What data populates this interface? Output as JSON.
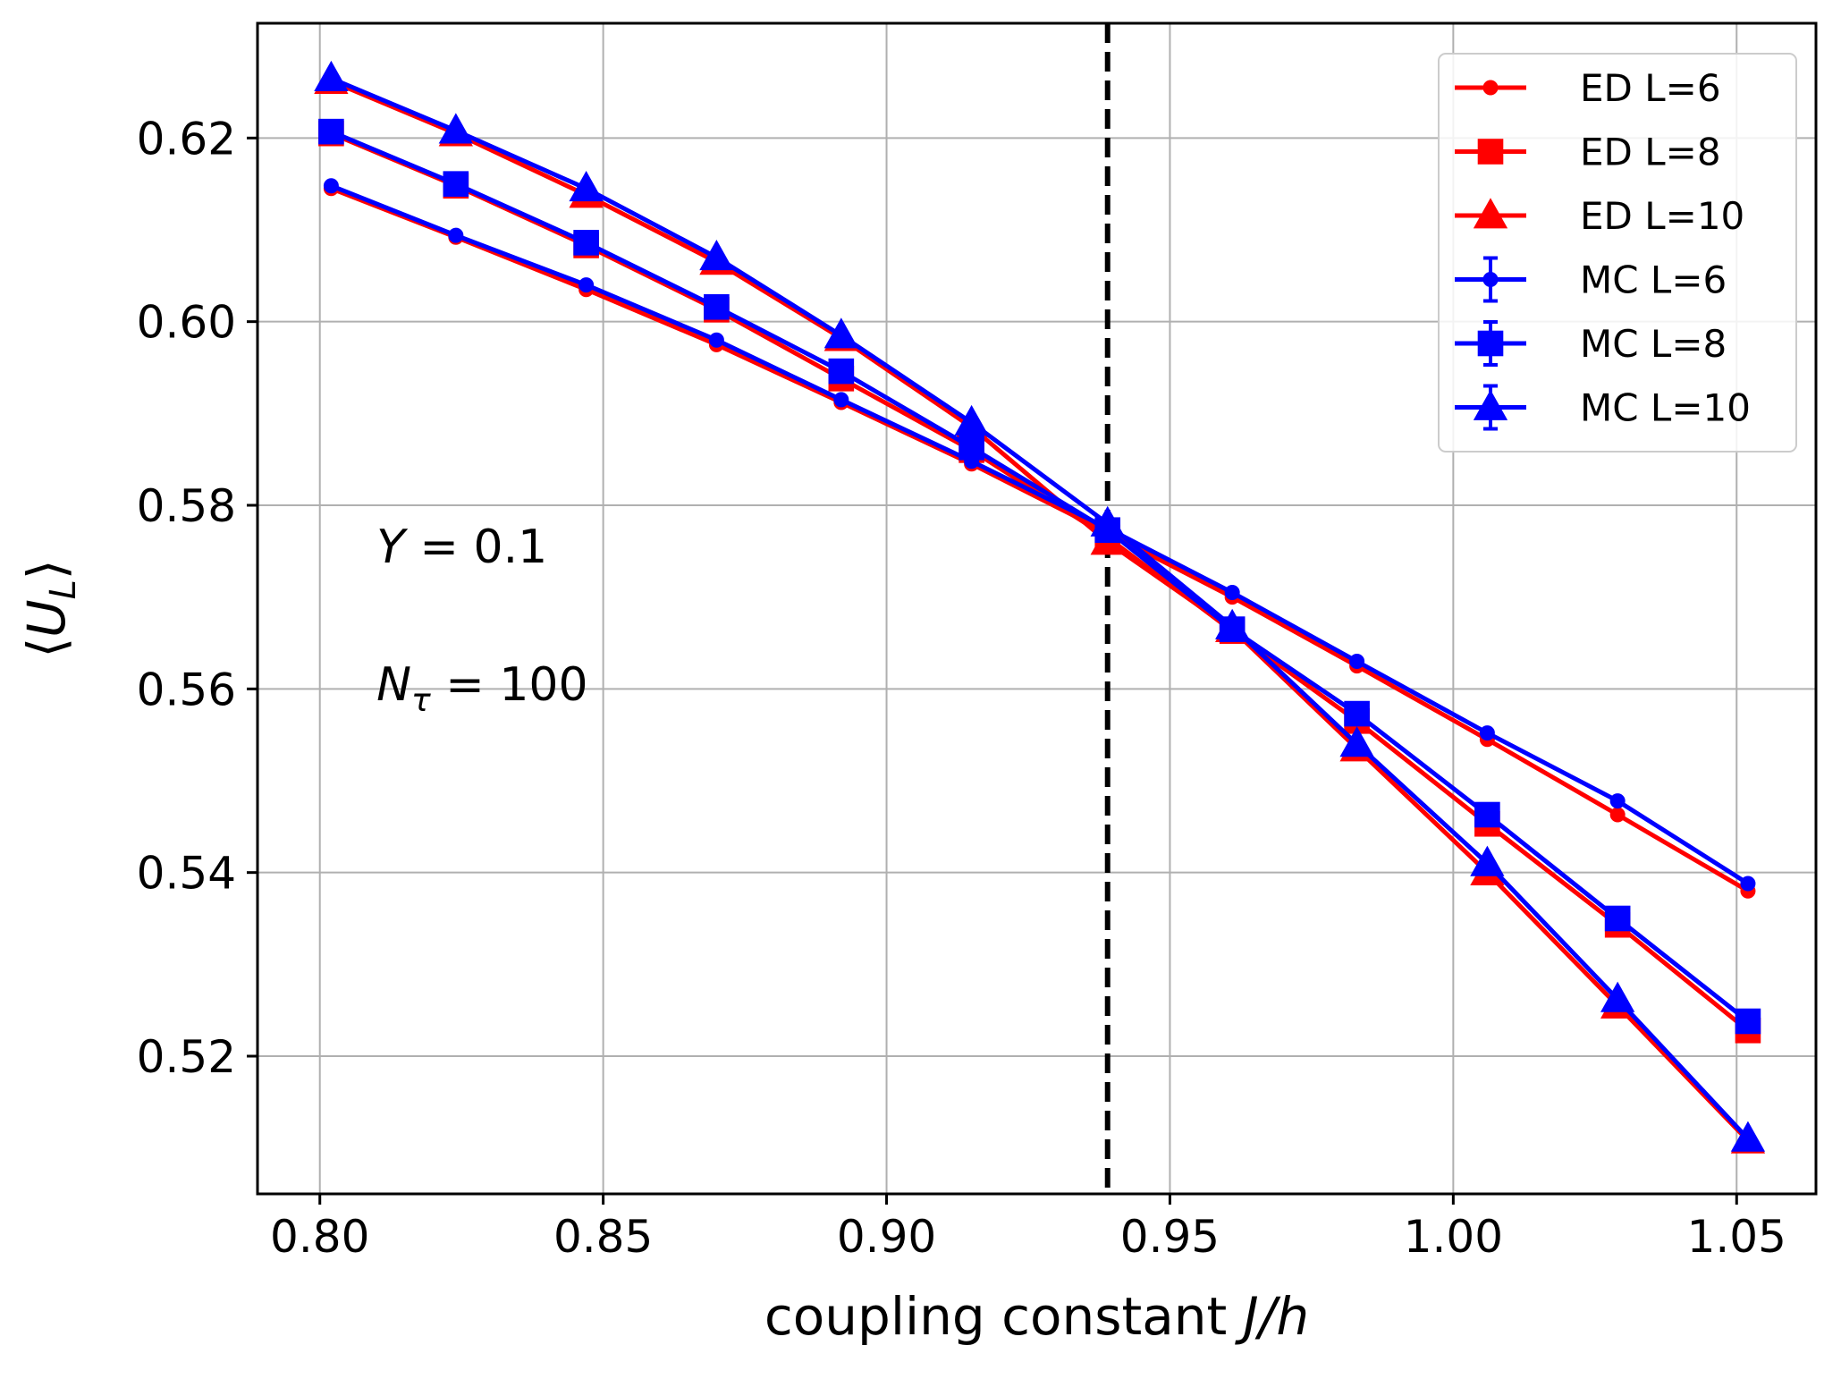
{
  "chart_data": {
    "type": "line",
    "xlabel": "coupling constant  J/h",
    "ylabel": "⟨U_L⟩",
    "xlim": [
      0.789,
      1.064
    ],
    "ylim": [
      0.505,
      0.6325
    ],
    "xticks": [
      0.8,
      0.85,
      0.9,
      0.95,
      1.0,
      1.05
    ],
    "xtick_labels": [
      "0.80",
      "0.85",
      "0.90",
      "0.95",
      "1.00",
      "1.05"
    ],
    "yticks": [
      0.52,
      0.54,
      0.56,
      0.58,
      0.6,
      0.62
    ],
    "ytick_labels": [
      "0.52",
      "0.54",
      "0.56",
      "0.58",
      "0.60",
      "0.62"
    ],
    "grid": true,
    "legend_position": "top-right",
    "vline": {
      "x": 0.939,
      "style": "dashed",
      "color": "#000000"
    },
    "annotations": [
      {
        "text": "Y = 0.1",
        "x": 0.81,
        "y": 0.5755
      },
      {
        "text": "N_τ = 100",
        "x": 0.81,
        "y": 0.5605
      }
    ],
    "x": [
      0.802,
      0.824,
      0.847,
      0.87,
      0.892,
      0.915,
      0.939,
      0.961,
      0.983,
      1.006,
      1.029,
      1.052
    ],
    "series": [
      {
        "name": "ED L=6",
        "color": "#ff0000",
        "marker": "circle",
        "values": [
          0.6145,
          0.6092,
          0.6035,
          0.5975,
          0.5912,
          0.5845,
          0.577,
          0.57,
          0.5625,
          0.5545,
          0.5463,
          0.538
        ]
      },
      {
        "name": "ED L=8",
        "color": "#ff0000",
        "marker": "square",
        "values": [
          0.6205,
          0.6148,
          0.6083,
          0.6013,
          0.5938,
          0.586,
          0.5765,
          0.5663,
          0.5565,
          0.5453,
          0.5343,
          0.5228
        ]
      },
      {
        "name": "ED L=10",
        "color": "#ff0000",
        "marker": "triangle",
        "values": [
          0.6262,
          0.6205,
          0.6138,
          0.6065,
          0.5982,
          0.5885,
          0.576,
          0.5665,
          0.5535,
          0.54,
          0.5255,
          0.5108
        ]
      },
      {
        "name": "MC L=6",
        "color": "#0000ff",
        "marker": "circle",
        "values": [
          0.6148,
          0.6094,
          0.604,
          0.598,
          0.5915,
          0.5848,
          0.5775,
          0.5705,
          0.563,
          0.5552,
          0.5478,
          0.5388
        ]
      },
      {
        "name": "MC L=8",
        "color": "#0000ff",
        "marker": "square",
        "values": [
          0.6207,
          0.615,
          0.6086,
          0.6016,
          0.5946,
          0.5863,
          0.5773,
          0.5665,
          0.5573,
          0.5463,
          0.535,
          0.5238
        ]
      },
      {
        "name": "MC L=10",
        "color": "#0000ff",
        "marker": "triangle",
        "values": [
          0.6265,
          0.6208,
          0.6145,
          0.607,
          0.5985,
          0.589,
          0.578,
          0.5668,
          0.554,
          0.541,
          0.5262,
          0.511
        ]
      }
    ]
  }
}
